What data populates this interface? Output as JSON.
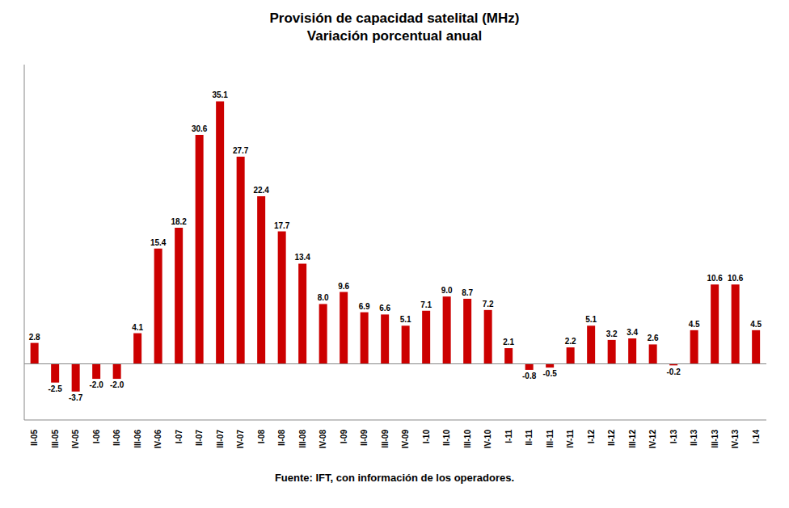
{
  "chart_data": {
    "type": "bar",
    "title": "Provisión de capacidad satelital (MHz)\nVariación porcentual anual",
    "categories": [
      "II-05",
      "III-05",
      "IV-05",
      "I-06",
      "II-06",
      "III-06",
      "IV-06",
      "I-07",
      "II-07",
      "III-07",
      "IV-07",
      "I-08",
      "II-08",
      "III-08",
      "IV-08",
      "I-09",
      "II-09",
      "III-09",
      "IV-09",
      "I-10",
      "II-10",
      "III-10",
      "IV-10",
      "I-11",
      "II-11",
      "III-11",
      "IV-11",
      "I-12",
      "II-12",
      "III-12",
      "IV-12",
      "I-13",
      "II-13",
      "III-13",
      "IV-13",
      "I-14"
    ],
    "values": [
      2.8,
      -2.5,
      -3.7,
      -2.0,
      -2.0,
      4.1,
      15.4,
      18.2,
      30.6,
      35.1,
      27.7,
      22.4,
      17.7,
      13.4,
      8.0,
      9.6,
      6.9,
      6.6,
      5.1,
      7.1,
      9.0,
      8.7,
      7.2,
      2.1,
      -0.8,
      -0.5,
      2.2,
      5.1,
      3.2,
      3.4,
      2.6,
      -0.2,
      4.5,
      10.6,
      10.6,
      4.5
    ],
    "value_labels": [
      "2.8",
      "-2.5",
      "-3.7",
      "-2.0",
      "-2.0",
      "4.1",
      "15.4",
      "18.2",
      "30.6",
      "35.1",
      "27.7",
      "22.4",
      "17.7",
      "13.4",
      "8.0",
      "9.6",
      "6.9",
      "6.6",
      "5.1",
      "7.1",
      "9.0",
      "8.7",
      "7.2",
      "2.1",
      "-0.8",
      "-0.5",
      "2.2",
      "5.1",
      "3.2",
      "3.4",
      "2.6",
      "-0.2",
      "4.5",
      "10.6",
      "10.6",
      "4.5"
    ],
    "color": "#cc0000",
    "ylim": [
      -7.5,
      40
    ],
    "data_labels": true,
    "tick_labels": "x",
    "grid": false,
    "annotations": [
      "Fuente: IFT, con información de los operadores."
    ]
  }
}
